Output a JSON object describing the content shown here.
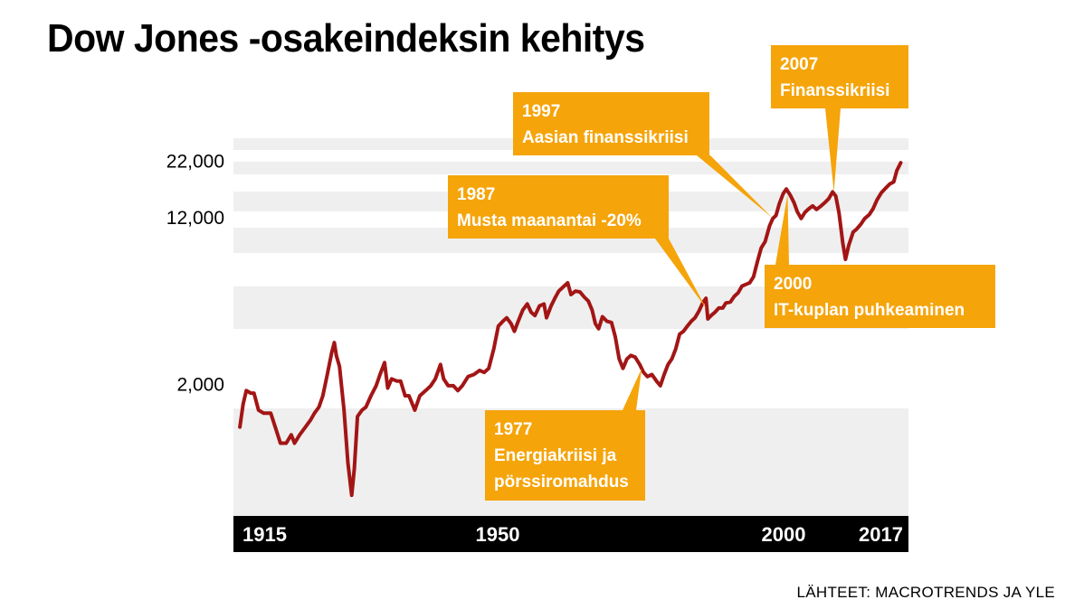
{
  "title": "Dow Jones -osakeindeksin kehitys",
  "source": "LÄHTEET: MACROTRENDS JA YLE",
  "colors": {
    "line": "#a31515",
    "annotation_bg": "#f5a40a",
    "annotation_text": "#ffffff",
    "axis_bar": "#000000",
    "band": "#efefef"
  },
  "chart_data": {
    "type": "line",
    "title": "Dow Jones -osakeindeksin kehitys",
    "y_scale": "log",
    "ylim": [
      480,
      35000
    ],
    "y_ticks": [
      {
        "value": 2000,
        "label": "2,000"
      },
      {
        "value": 12000,
        "label": "12,000"
      },
      {
        "value": 22000,
        "label": "22,000"
      }
    ],
    "xlim": [
      1914,
      2019
    ],
    "x_ticks": [
      {
        "value": 1915,
        "label": "1915"
      },
      {
        "value": 1950,
        "label": "1950"
      },
      {
        "value": 2000,
        "label": "2000"
      },
      {
        "value": 2017,
        "label": "2017"
      }
    ],
    "grid": false,
    "series": [
      {
        "values": [
          [
            1915.0,
            1250
          ],
          [
            1915.5,
            1600
          ],
          [
            1916.0,
            1850
          ],
          [
            1916.7,
            1800
          ],
          [
            1917.2,
            1800
          ],
          [
            1917.9,
            1500
          ],
          [
            1918.7,
            1450
          ],
          [
            1919.8,
            1450
          ],
          [
            1920.5,
            1250
          ],
          [
            1921.3,
            1050
          ],
          [
            1922.2,
            1050
          ],
          [
            1923.0,
            1150
          ],
          [
            1923.5,
            1050
          ],
          [
            1924.3,
            1150
          ],
          [
            1925.2,
            1250
          ],
          [
            1926.0,
            1350
          ],
          [
            1926.6,
            1450
          ],
          [
            1927.3,
            1550
          ],
          [
            1927.9,
            1750
          ],
          [
            1928.6,
            2200
          ],
          [
            1929.3,
            2800
          ],
          [
            1929.7,
            3100
          ],
          [
            1930.0,
            2700
          ],
          [
            1930.5,
            2400
          ],
          [
            1931.2,
            1500
          ],
          [
            1931.8,
            850
          ],
          [
            1932.4,
            600
          ],
          [
            1932.8,
            800
          ],
          [
            1933.3,
            1400
          ],
          [
            1934.0,
            1500
          ],
          [
            1934.6,
            1550
          ],
          [
            1935.4,
            1750
          ],
          [
            1936.2,
            1950
          ],
          [
            1936.8,
            2200
          ],
          [
            1937.5,
            2500
          ],
          [
            1938.0,
            1900
          ],
          [
            1938.6,
            2100
          ],
          [
            1939.4,
            2050
          ],
          [
            1940.0,
            2050
          ],
          [
            1940.7,
            1750
          ],
          [
            1941.3,
            1750
          ],
          [
            1942.2,
            1500
          ],
          [
            1943.0,
            1750
          ],
          [
            1943.9,
            1850
          ],
          [
            1944.7,
            1950
          ],
          [
            1945.4,
            2100
          ],
          [
            1946.2,
            2450
          ],
          [
            1946.7,
            2100
          ],
          [
            1947.4,
            1950
          ],
          [
            1948.2,
            1950
          ],
          [
            1948.9,
            1850
          ],
          [
            1949.6,
            1950
          ],
          [
            1950.5,
            2150
          ],
          [
            1951.4,
            2200
          ],
          [
            1952.3,
            2300
          ],
          [
            1953.0,
            2250
          ],
          [
            1953.7,
            2350
          ],
          [
            1954.5,
            2900
          ],
          [
            1955.2,
            3700
          ],
          [
            1955.9,
            3900
          ],
          [
            1956.5,
            4050
          ],
          [
            1957.2,
            3800
          ],
          [
            1957.7,
            3500
          ],
          [
            1958.3,
            3900
          ],
          [
            1959.0,
            4400
          ],
          [
            1959.7,
            4700
          ],
          [
            1960.3,
            4300
          ],
          [
            1960.9,
            4150
          ],
          [
            1961.6,
            4600
          ],
          [
            1962.3,
            4700
          ],
          [
            1962.7,
            4050
          ],
          [
            1963.4,
            4600
          ],
          [
            1964.0,
            5000
          ],
          [
            1964.6,
            5400
          ],
          [
            1965.3,
            5650
          ],
          [
            1966.0,
            5900
          ],
          [
            1966.5,
            5200
          ],
          [
            1967.2,
            5400
          ],
          [
            1967.9,
            5350
          ],
          [
            1968.6,
            5050
          ],
          [
            1969.2,
            4850
          ],
          [
            1969.8,
            4400
          ],
          [
            1970.3,
            3800
          ],
          [
            1970.8,
            3600
          ],
          [
            1971.4,
            4100
          ],
          [
            1972.1,
            3900
          ],
          [
            1972.8,
            3850
          ],
          [
            1973.4,
            3300
          ],
          [
            1974.0,
            2600
          ],
          [
            1974.6,
            2350
          ],
          [
            1975.2,
            2600
          ],
          [
            1975.8,
            2700
          ],
          [
            1976.5,
            2650
          ],
          [
            1977.2,
            2450
          ],
          [
            1977.8,
            2250
          ],
          [
            1978.4,
            2150
          ],
          [
            1979.1,
            2200
          ],
          [
            1979.8,
            2050
          ],
          [
            1980.4,
            1950
          ],
          [
            1981.0,
            2200
          ],
          [
            1981.6,
            2450
          ],
          [
            1982.2,
            2600
          ],
          [
            1982.8,
            2900
          ],
          [
            1983.4,
            3400
          ],
          [
            1984.0,
            3500
          ],
          [
            1984.6,
            3700
          ],
          [
            1985.2,
            3900
          ],
          [
            1985.8,
            4050
          ],
          [
            1986.4,
            4350
          ],
          [
            1987.0,
            4750
          ],
          [
            1987.5,
            5000
          ],
          [
            1987.8,
            4000
          ],
          [
            1988.3,
            4150
          ],
          [
            1988.9,
            4300
          ],
          [
            1989.5,
            4500
          ],
          [
            1990.1,
            4500
          ],
          [
            1990.6,
            4750
          ],
          [
            1991.3,
            4800
          ],
          [
            1991.9,
            5100
          ],
          [
            1992.5,
            5300
          ],
          [
            1993.1,
            5700
          ],
          [
            1993.7,
            5800
          ],
          [
            1994.3,
            5900
          ],
          [
            1994.9,
            6300
          ],
          [
            1995.5,
            7400
          ],
          [
            1996.1,
            8600
          ],
          [
            1996.7,
            9200
          ],
          [
            1997.4,
            10900
          ],
          [
            1997.9,
            11800
          ],
          [
            1998.4,
            12200
          ],
          [
            1998.9,
            13800
          ],
          [
            1999.5,
            15400
          ],
          [
            2000.0,
            16200
          ],
          [
            2000.6,
            15200
          ],
          [
            2001.2,
            14000
          ],
          [
            2001.7,
            12700
          ],
          [
            2002.3,
            11800
          ],
          [
            2002.9,
            12600
          ],
          [
            2003.5,
            13100
          ],
          [
            2004.1,
            13500
          ],
          [
            2004.7,
            13000
          ],
          [
            2005.4,
            13500
          ],
          [
            2006.0,
            14000
          ],
          [
            2006.6,
            14600
          ],
          [
            2007.2,
            15700
          ],
          [
            2007.7,
            15000
          ],
          [
            2008.2,
            12500
          ],
          [
            2008.8,
            9000
          ],
          [
            2009.2,
            7600
          ],
          [
            2009.7,
            8800
          ],
          [
            2010.4,
            10200
          ],
          [
            2010.9,
            10500
          ],
          [
            2011.6,
            11100
          ],
          [
            2012.2,
            11800
          ],
          [
            2012.9,
            12300
          ],
          [
            2013.5,
            13100
          ],
          [
            2014.1,
            14400
          ],
          [
            2014.8,
            15600
          ],
          [
            2015.5,
            16400
          ],
          [
            2016.1,
            17100
          ],
          [
            2016.7,
            17500
          ],
          [
            2017.2,
            19800
          ],
          [
            2017.8,
            21500
          ]
        ]
      }
    ],
    "annotations": [
      {
        "year_label": "1977",
        "text_lines": [
          "Energiakriisi ja",
          "pörssiromahdus"
        ],
        "points_to": [
          1977.5,
          2350
        ]
      },
      {
        "year_label": "1987",
        "text_lines": [
          "Musta maanantai -20%"
        ],
        "points_to": [
          1987.6,
          4450
        ]
      },
      {
        "year_label": "1997",
        "text_lines": [
          "Aasian finanssikriisi"
        ],
        "points_to": [
          1997.8,
          11900
        ]
      },
      {
        "year_label": "2000",
        "text_lines": [
          "IT-kuplan puhkeaminen"
        ],
        "points_to": [
          2000.2,
          15300
        ]
      },
      {
        "year_label": "2007",
        "text_lines": [
          "Finanssikriisi"
        ],
        "points_to": [
          2007.4,
          15700
        ]
      }
    ]
  }
}
